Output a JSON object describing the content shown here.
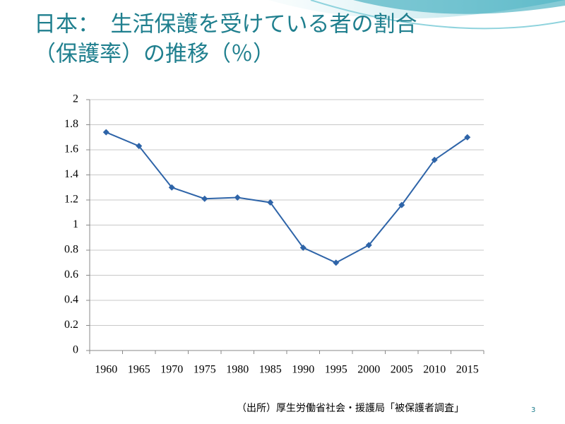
{
  "chart_data": {
    "type": "line",
    "title_lines": [
      "日本：　生活保護を受けている者の割合",
      "（保護率）の推移（％）"
    ],
    "categories": [
      "1960",
      "1965",
      "1970",
      "1975",
      "1980",
      "1985",
      "1990",
      "1995",
      "2000",
      "2005",
      "2010",
      "2015"
    ],
    "values": [
      1.74,
      1.63,
      1.3,
      1.21,
      1.22,
      1.18,
      0.82,
      0.7,
      0.84,
      1.16,
      1.52,
      1.7
    ],
    "color": "#2e64a8",
    "ylim": [
      0,
      2
    ],
    "yticks": [
      0,
      0.2,
      0.4,
      0.6,
      0.8,
      1,
      1.2,
      1.4,
      1.6,
      1.8,
      2
    ],
    "grid": true
  },
  "footer": {
    "source": "（出所）厚生労働省社会・援護局「被保護者調査」",
    "slide_number": 3
  }
}
